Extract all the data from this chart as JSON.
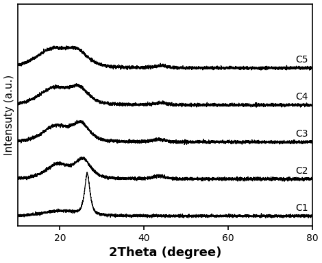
{
  "xlabel": "2Theta (degree)",
  "ylabel": "Intensuty (a.u.)",
  "xmin": 10,
  "xmax": 80,
  "curve_labels": [
    "C1",
    "C2",
    "C3",
    "C4",
    "C5"
  ],
  "offsets": [
    0,
    0.9,
    1.8,
    2.7,
    3.6
  ],
  "xticks": [
    20,
    40,
    60,
    80
  ],
  "line_color": "#000000",
  "background_color": "#ffffff",
  "xlabel_fontsize": 13,
  "ylabel_fontsize": 11,
  "label_fontsize": 10,
  "figsize": [
    4.7,
    3.83
  ],
  "dpi": 100
}
